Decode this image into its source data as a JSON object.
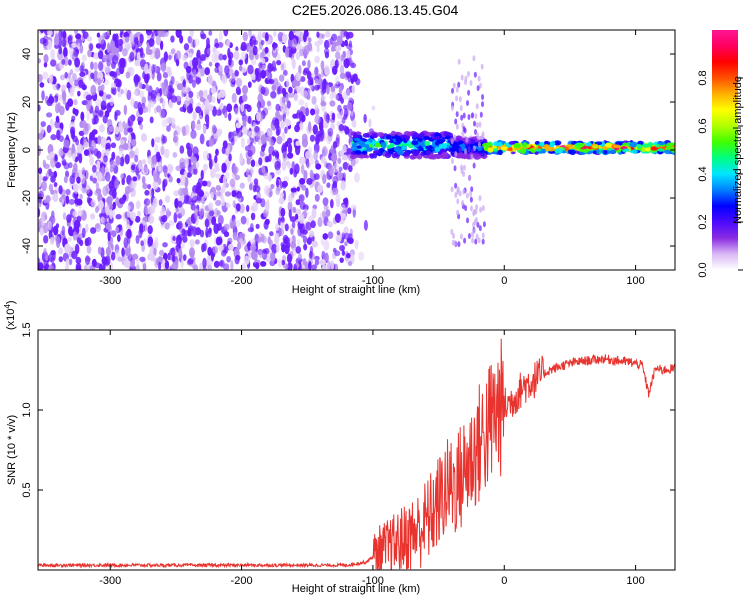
{
  "title": "C2E5.2026.086.13.45.G04",
  "chart_data": [
    {
      "type": "heatmap",
      "title": "",
      "xlabel": "Height of straight line (km)",
      "ylabel": "Frequency (Hz)",
      "xlim": [
        -355,
        130
      ],
      "ylim": [
        -50,
        50
      ],
      "xticks": [
        -300,
        -200,
        -100,
        0,
        100
      ],
      "yticks": [
        -40,
        -20,
        0,
        20,
        40
      ],
      "colorbar": {
        "label": "Normalized spectral amplitude",
        "range": [
          0.0,
          1.0
        ],
        "ticks": [
          "0.0",
          "0.2",
          "0.4",
          "0.6",
          "0.8"
        ],
        "colors": [
          "#ffffff",
          "#d9b8f4",
          "#8a2be2",
          "#4b0aff",
          "#0000ff",
          "#0080ff",
          "#00e5ff",
          "#00ff80",
          "#40ff00",
          "#b0ff00",
          "#ffff00",
          "#ffb000",
          "#ff5000",
          "#ff0000",
          "#ff0060",
          "#ff1493"
        ]
      },
      "regions": [
        {
          "x_range": [
            -355,
            -115
          ],
          "freq_range": [
            -50,
            50
          ],
          "description": "noise",
          "amplitude": 0.15
        },
        {
          "x_range": [
            -115,
            -40
          ],
          "freq_center": 2,
          "freq_halfwidth": 5,
          "amplitude": 0.45
        },
        {
          "x_range": [
            -40,
            -15
          ],
          "freq_center": 1,
          "freq_halfwidth": 4,
          "amplitude": 0.35
        },
        {
          "x_range": [
            -15,
            130
          ],
          "freq_center": 1,
          "freq_halfwidth": 2,
          "amplitude": 0.85
        }
      ]
    },
    {
      "type": "line",
      "title": "",
      "xlabel": "Height of straight line (km)",
      "ylabel": "SNR (10 * v/v)",
      "yscale_label": "(x10",
      "yscale_exp": "4",
      "yscale_close": ")",
      "xlim": [
        -355,
        130
      ],
      "ylim": [
        0,
        1.5
      ],
      "xticks": [
        -300,
        -200,
        -100,
        0,
        100
      ],
      "yticks": [
        0.5,
        1.0,
        1.5
      ],
      "ytick_labels": [
        "0.5",
        "1.0",
        "1.5"
      ],
      "color": "#e8332e",
      "series": [
        {
          "name": "SNR",
          "x": [
            -355,
            -300,
            -250,
            -200,
            -150,
            -120,
            -105,
            -95,
            -85,
            -75,
            -65,
            -55,
            -45,
            -35,
            -25,
            -15,
            -5,
            5,
            15,
            25,
            35,
            45,
            55,
            65,
            75,
            85,
            95,
            105,
            110,
            115,
            120,
            130
          ],
          "y": [
            0.03,
            0.03,
            0.03,
            0.03,
            0.03,
            0.03,
            0.05,
            0.12,
            0.15,
            0.2,
            0.25,
            0.35,
            0.5,
            0.55,
            0.7,
            0.85,
            1.0,
            1.05,
            1.15,
            1.2,
            1.25,
            1.28,
            1.3,
            1.31,
            1.32,
            1.31,
            1.3,
            1.28,
            1.1,
            1.26,
            1.25,
            1.26
          ]
        }
      ]
    }
  ]
}
